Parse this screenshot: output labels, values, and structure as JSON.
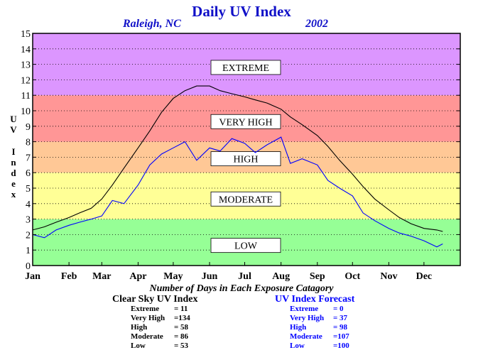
{
  "title": "Daily UV Index",
  "subtitle_location": "Raleigh, NC",
  "subtitle_year": "2002",
  "ylabel_letters": [
    "U",
    "V",
    "I",
    "n",
    "d",
    "e",
    "x"
  ],
  "colors": {
    "extreme": "#dc96ff",
    "very_high": "#ff9696",
    "high": "#ffc896",
    "moderate": "#ffff96",
    "low": "#96ff96",
    "clear_sky_line": "#000000",
    "forecast_line": "#0000ff"
  },
  "chart_data": {
    "type": "line",
    "ylim": [
      0,
      15
    ],
    "yticks": [
      "0",
      "1",
      "2",
      "3",
      "4",
      "5",
      "6",
      "7",
      "8",
      "9",
      "10",
      "11",
      "12",
      "13",
      "14",
      "15"
    ],
    "grid": true,
    "xticks": [
      "Jan",
      "Feb",
      "Mar",
      "Apr",
      "May",
      "Jun",
      "Jul",
      "Aug",
      "Sep",
      "Oct",
      "Nov",
      "Dec"
    ],
    "bands": [
      {
        "label": "LOW",
        "from": 0,
        "to": 3,
        "color": "#96ff96"
      },
      {
        "label": "MODERATE",
        "from": 3,
        "to": 6,
        "color": "#ffff96"
      },
      {
        "label": "HIGH",
        "from": 6,
        "to": 8,
        "color": "#ffc896"
      },
      {
        "label": "VERY HIGH",
        "from": 8,
        "to": 11,
        "color": "#ff9696"
      },
      {
        "label": "EXTREME",
        "from": 11,
        "to": 15,
        "color": "#dc96ff"
      }
    ],
    "series": [
      {
        "name": "Clear Sky UV Index",
        "color": "#000000",
        "points": [
          [
            0,
            2.3
          ],
          [
            10,
            2.5
          ],
          [
            20,
            2.8
          ],
          [
            31,
            3.1
          ],
          [
            40,
            3.4
          ],
          [
            50,
            3.7
          ],
          [
            59,
            4.3
          ],
          [
            68,
            5.2
          ],
          [
            78,
            6.3
          ],
          [
            90,
            7.6
          ],
          [
            100,
            8.7
          ],
          [
            110,
            9.9
          ],
          [
            120,
            10.8
          ],
          [
            130,
            11.3
          ],
          [
            140,
            11.6
          ],
          [
            151,
            11.6
          ],
          [
            160,
            11.3
          ],
          [
            170,
            11.1
          ],
          [
            181,
            10.9
          ],
          [
            190,
            10.7
          ],
          [
            200,
            10.5
          ],
          [
            212,
            10.1
          ],
          [
            220,
            9.6
          ],
          [
            230,
            9.1
          ],
          [
            243,
            8.4
          ],
          [
            252,
            7.7
          ],
          [
            262,
            6.8
          ],
          [
            273,
            5.9
          ],
          [
            282,
            5.1
          ],
          [
            292,
            4.3
          ],
          [
            304,
            3.6
          ],
          [
            313,
            3.1
          ],
          [
            323,
            2.7
          ],
          [
            334,
            2.4
          ],
          [
            345,
            2.3
          ],
          [
            350,
            2.2
          ]
        ]
      },
      {
        "name": "UV Index Forecast",
        "color": "#0000ff",
        "points": [
          [
            0,
            2.0
          ],
          [
            10,
            1.8
          ],
          [
            20,
            2.3
          ],
          [
            31,
            2.6
          ],
          [
            40,
            2.8
          ],
          [
            50,
            3.0
          ],
          [
            59,
            3.2
          ],
          [
            68,
            4.2
          ],
          [
            78,
            4.0
          ],
          [
            90,
            5.2
          ],
          [
            100,
            6.5
          ],
          [
            110,
            7.2
          ],
          [
            120,
            7.6
          ],
          [
            130,
            8.0
          ],
          [
            140,
            6.8
          ],
          [
            151,
            7.6
          ],
          [
            160,
            7.4
          ],
          [
            170,
            8.2
          ],
          [
            181,
            7.9
          ],
          [
            190,
            7.3
          ],
          [
            200,
            7.8
          ],
          [
            212,
            8.3
          ],
          [
            220,
            6.6
          ],
          [
            230,
            6.9
          ],
          [
            243,
            6.5
          ],
          [
            252,
            5.5
          ],
          [
            262,
            5.0
          ],
          [
            273,
            4.5
          ],
          [
            282,
            3.4
          ],
          [
            292,
            2.9
          ],
          [
            304,
            2.4
          ],
          [
            313,
            2.1
          ],
          [
            323,
            1.9
          ],
          [
            334,
            1.6
          ],
          [
            345,
            1.2
          ],
          [
            350,
            1.4
          ]
        ]
      }
    ]
  },
  "counts": {
    "title": "Number of Days in Each Exposure Catagory",
    "clear_sky": {
      "title": "Clear Sky UV Index",
      "rows": [
        {
          "label": "Extreme",
          "value": "= 11"
        },
        {
          "label": "Very High",
          "value": "=134"
        },
        {
          "label": "High",
          "value": "= 58"
        },
        {
          "label": "Moderate",
          "value": "= 86"
        },
        {
          "label": "Low",
          "value": "= 53"
        }
      ]
    },
    "forecast": {
      "title": "UV Index Forecast",
      "rows": [
        {
          "label": "Extreme",
          "value": "= 0"
        },
        {
          "label": "Very High",
          "value": "= 37"
        },
        {
          "label": "High",
          "value": "= 98"
        },
        {
          "label": "Moderate",
          "value": "=107"
        },
        {
          "label": "Low",
          "value": "=100"
        }
      ]
    }
  }
}
